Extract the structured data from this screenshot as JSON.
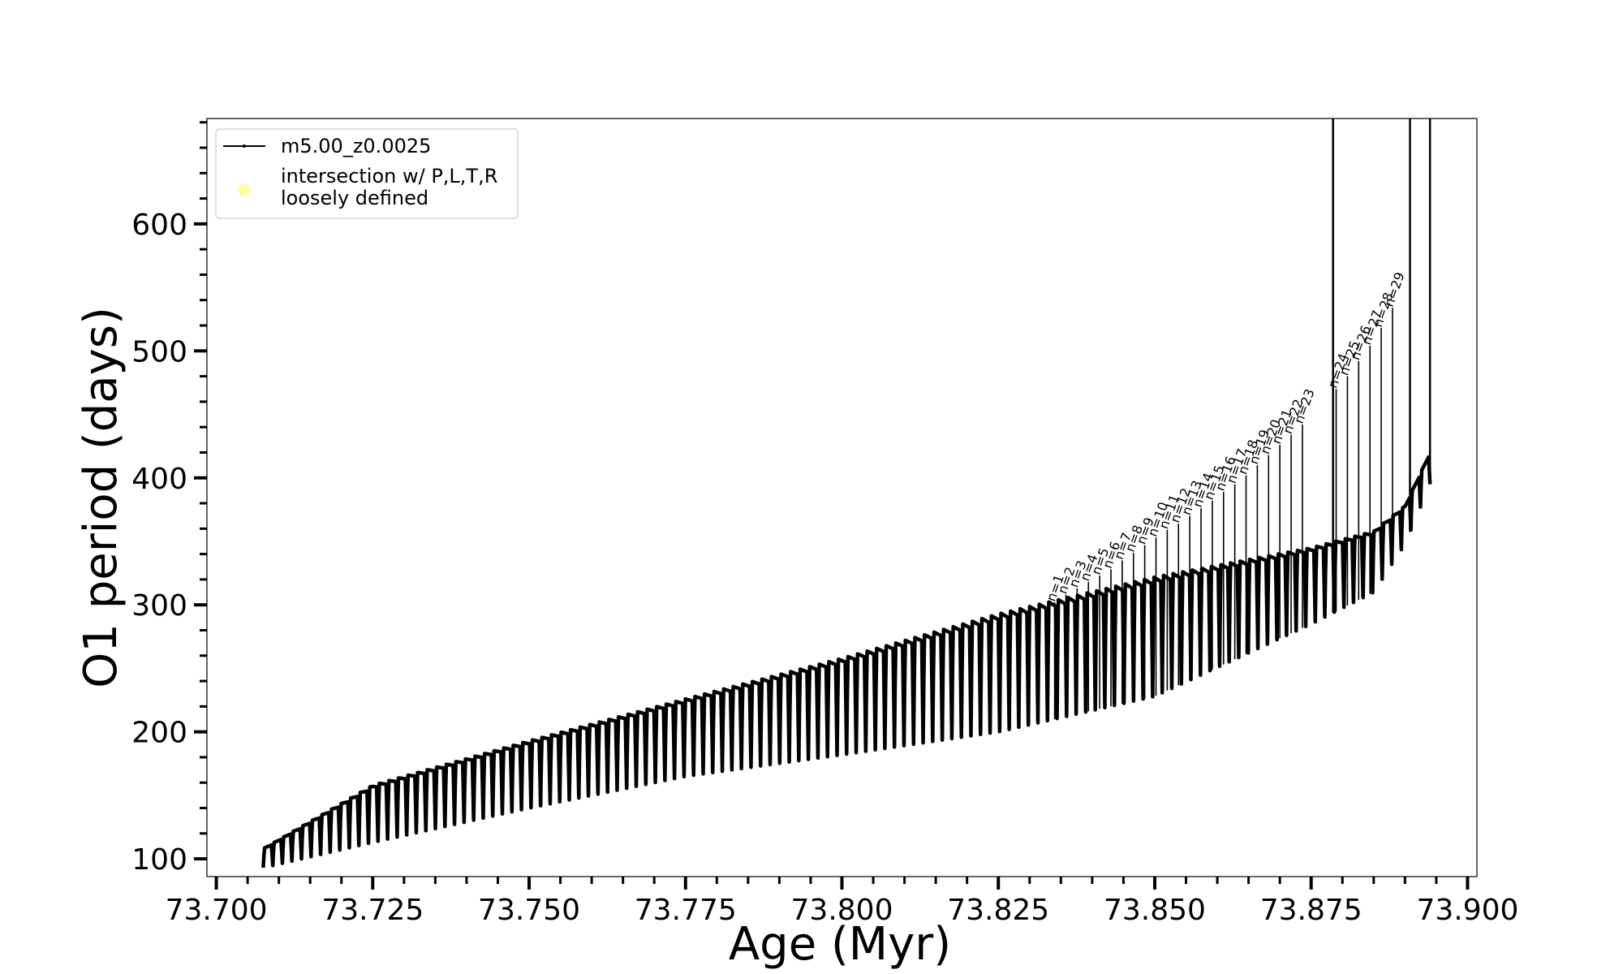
{
  "chart_data": {
    "type": "line",
    "title": "",
    "xlabel": "Age (Myr)",
    "ylabel": "O1 period (days)",
    "xlim": [
      73.6985,
      73.9015
    ],
    "ylim": [
      86,
      683
    ],
    "xticks": [
      73.7,
      73.725,
      73.75,
      73.775,
      73.8,
      73.825,
      73.85,
      73.875,
      73.9
    ],
    "xtick_labels": [
      "73.700",
      "73.725",
      "73.750",
      "73.775",
      "73.800",
      "73.825",
      "73.850",
      "73.875",
      "73.900"
    ],
    "yticks": [
      100,
      200,
      300,
      400,
      500,
      600
    ],
    "ytick_labels": [
      "100",
      "200",
      "300",
      "400",
      "500",
      "600"
    ],
    "grid": false,
    "legend": {
      "position": "upper-left",
      "entries": [
        {
          "label": "m5.00_z0.0025",
          "marker": "line-with-dots",
          "color": "#000000"
        },
        {
          "label_lines": [
            "intersection w/ P,L,T,R",
            "loosely defined"
          ],
          "marker": "circle",
          "color": "#ffffa0"
        }
      ]
    },
    "series": [
      {
        "name": "m5.00_z0.0025",
        "color": "#000000",
        "pulse_start_age": 73.7075,
        "pulse_end_age": 73.894,
        "pulse_count": 122,
        "upper_envelope": [
          [
            73.7075,
            108
          ],
          [
            73.725,
            158
          ],
          [
            73.75,
            193
          ],
          [
            73.775,
            226
          ],
          [
            73.8,
            258
          ],
          [
            73.825,
            293
          ],
          [
            73.85,
            322
          ],
          [
            73.875,
            345
          ],
          [
            73.885,
            358
          ],
          [
            73.89,
            378
          ],
          [
            73.894,
            420
          ]
        ],
        "lower_envelope": [
          [
            73.7075,
            93
          ],
          [
            73.725,
            113
          ],
          [
            73.75,
            140
          ],
          [
            73.775,
            165
          ],
          [
            73.8,
            182
          ],
          [
            73.825,
            200
          ],
          [
            73.85,
            228
          ],
          [
            73.875,
            285
          ],
          [
            73.885,
            310
          ],
          [
            73.89,
            348
          ],
          [
            73.894,
            395
          ]
        ],
        "spikes": [
          [
            73.8785,
            690
          ],
          [
            73.8908,
            690
          ],
          [
            73.894,
            690
          ]
        ]
      }
    ],
    "annotations": [
      {
        "text": "n=1",
        "x": 73.834,
        "y": 302
      },
      {
        "text": "n=2",
        "x": 73.8358,
        "y": 308
      },
      {
        "text": "n=3",
        "x": 73.8376,
        "y": 313
      },
      {
        "text": "n=4",
        "x": 73.8394,
        "y": 318
      },
      {
        "text": "n=5",
        "x": 73.8412,
        "y": 323
      },
      {
        "text": "n=6",
        "x": 73.843,
        "y": 328
      },
      {
        "text": "n=7",
        "x": 73.8448,
        "y": 335
      },
      {
        "text": "n=8",
        "x": 73.8466,
        "y": 341
      },
      {
        "text": "n=9",
        "x": 73.8484,
        "y": 347
      },
      {
        "text": "n=10",
        "x": 73.8502,
        "y": 353
      },
      {
        "text": "n=11",
        "x": 73.852,
        "y": 359
      },
      {
        "text": "n=12",
        "x": 73.8538,
        "y": 364
      },
      {
        "text": "n=13",
        "x": 73.8556,
        "y": 370
      },
      {
        "text": "n=14",
        "x": 73.8574,
        "y": 376
      },
      {
        "text": "n=15",
        "x": 73.8592,
        "y": 382
      },
      {
        "text": "n=16",
        "x": 73.861,
        "y": 389
      },
      {
        "text": "n=17",
        "x": 73.8628,
        "y": 395
      },
      {
        "text": "n=18",
        "x": 73.8646,
        "y": 402
      },
      {
        "text": "n=19",
        "x": 73.8664,
        "y": 410
      },
      {
        "text": "n=20",
        "x": 73.8682,
        "y": 418
      },
      {
        "text": "n=21",
        "x": 73.87,
        "y": 426
      },
      {
        "text": "n=22",
        "x": 73.8718,
        "y": 434
      },
      {
        "text": "n=23",
        "x": 73.8736,
        "y": 442
      },
      {
        "text": "n=24",
        "x": 73.879,
        "y": 470
      },
      {
        "text": "n=25",
        "x": 73.8808,
        "y": 480
      },
      {
        "text": "n=26",
        "x": 73.8826,
        "y": 492
      },
      {
        "text": "n=27",
        "x": 73.8844,
        "y": 504
      },
      {
        "text": "n=28",
        "x": 73.8862,
        "y": 518
      },
      {
        "text": "n=29",
        "x": 73.888,
        "y": 534
      }
    ]
  }
}
